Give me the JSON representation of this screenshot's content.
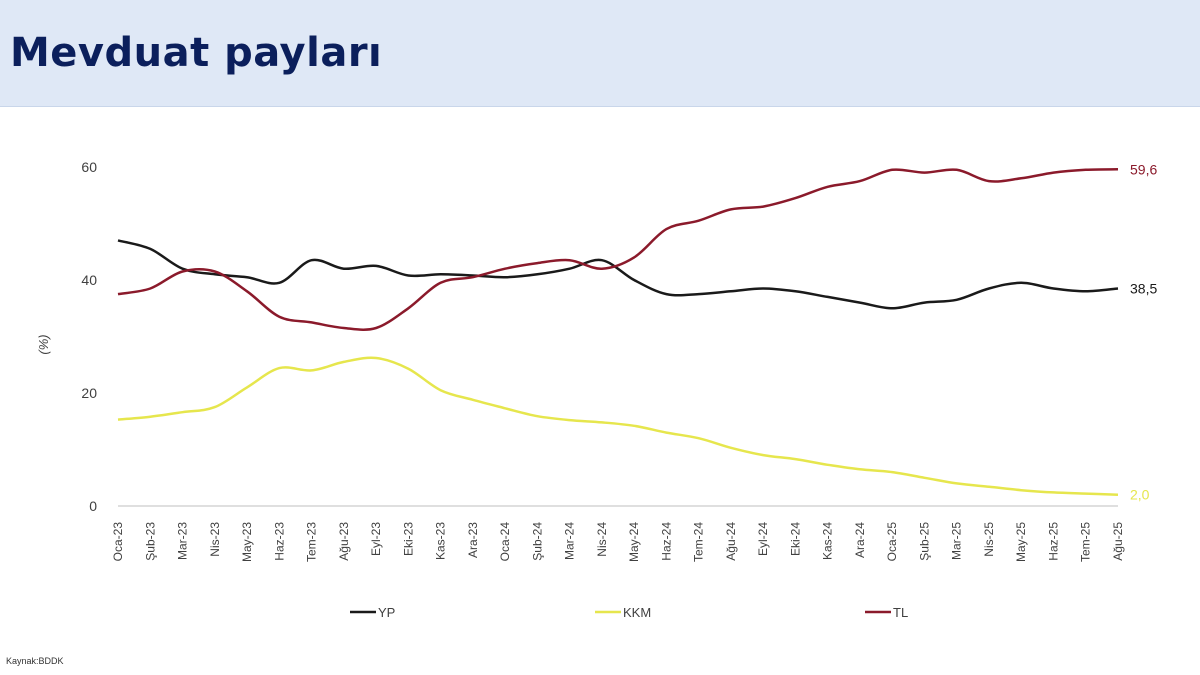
{
  "header": {
    "title": "Mevduat payları"
  },
  "source": "Kaynak:BDDK",
  "chart_data": {
    "type": "line",
    "title": "",
    "xlabel": "",
    "ylabel": "(%)",
    "ylim": [
      0,
      60
    ],
    "yticks": [
      0,
      20,
      40,
      60
    ],
    "grid": false,
    "legend_position": "bottom",
    "x": [
      "Oca-23",
      "Şub-23",
      "Mar-23",
      "Nis-23",
      "May-23",
      "Haz-23",
      "Tem-23",
      "Ağu-23",
      "Eyl-23",
      "Eki-23",
      "Kas-23",
      "Ara-23",
      "Oca-24",
      "Şub-24",
      "Mar-24",
      "Nis-24",
      "May-24",
      "Haz-24",
      "Tem-24",
      "Ağu-24",
      "Eyl-24",
      "Eki-24",
      "Kas-24",
      "Ara-24",
      "Oca-25",
      "Şub-25",
      "Mar-25",
      "Nis-25",
      "May-25",
      "Haz-25",
      "Tem-25",
      "Ağu-25"
    ],
    "series": [
      {
        "name": "YP",
        "color": "#1a1a1a",
        "end_label": "38,5",
        "values": [
          47,
          45.5,
          42,
          41,
          40.5,
          39.5,
          43.5,
          42,
          42.5,
          40.8,
          41,
          40.8,
          40.5,
          41,
          42,
          43.5,
          40,
          37.5,
          37.5,
          38,
          38.5,
          38,
          37,
          36,
          35,
          36,
          36.5,
          38.5,
          39.5,
          38.5,
          38,
          38.5
        ]
      },
      {
        "name": "KKM",
        "color": "#e6e64d",
        "end_label": "2,0",
        "values": [
          15.3,
          15.8,
          16.6,
          17.5,
          21,
          24.4,
          24,
          25.5,
          26.2,
          24.3,
          20.5,
          18.8,
          17.3,
          15.9,
          15.2,
          14.8,
          14.2,
          13,
          12,
          10.3,
          9,
          8.3,
          7.3,
          6.5,
          6,
          5,
          4,
          3.4,
          2.8,
          2.4,
          2.2,
          2.0
        ]
      },
      {
        "name": "TL",
        "color": "#8b1a2b",
        "end_label": "59,6",
        "values": [
          37.5,
          38.5,
          41.5,
          41.5,
          38,
          33.5,
          32.5,
          31.5,
          31.5,
          35,
          39.5,
          40.5,
          42,
          43,
          43.5,
          42,
          44,
          49,
          50.5,
          52.5,
          53,
          54.5,
          56.5,
          57.5,
          59.5,
          59,
          59.5,
          57.5,
          58,
          59,
          59.5,
          59.6
        ]
      }
    ]
  }
}
